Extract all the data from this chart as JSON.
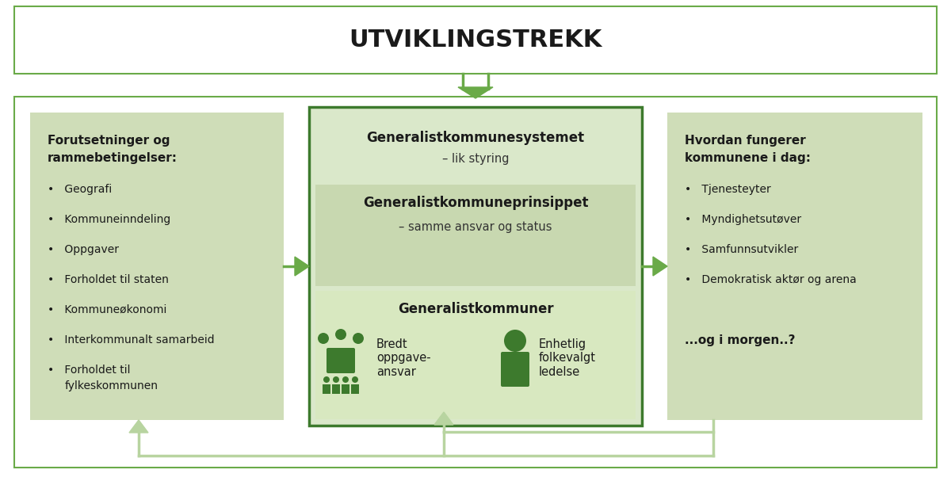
{
  "title": "UTVIKLINGSTREKK",
  "bg_color": "#ffffff",
  "green_light": "#b8d4a0",
  "green_mid": "#6aaa48",
  "green_dark": "#3d7a2d",
  "green_box_fill": "#cfddb8",
  "center_top_fill": "#dae8ca",
  "center_mid_fill": "#c8d8b0",
  "center_bot_fill": "#d8e8c0",
  "left_box": {
    "title_line1": "Forutsetninger og",
    "title_line2": "rammebetingelser:",
    "items": [
      "Geografi",
      "Kommuneinndeling",
      "Oppgaver",
      "Forholdet til staten",
      "Kommuneøkonomi",
      "Interkommunalt samarbeid",
      "Forholdet til\nfylkeskommunen"
    ]
  },
  "center_box": {
    "title1": "Generalistkommunesystemet",
    "subtitle1": "– lik styring",
    "title2": "Generalistkommuneprinsippet",
    "subtitle2": "– samme ansvar og status",
    "title3": "Generalistkommuner",
    "item1": "Bredt\noppgave-\nansvar",
    "item2": "Enhetlig\nfolkevalgt\nledelse"
  },
  "right_box": {
    "title_line1": "Hvordan fungerer",
    "title_line2": "kommunene i dag:",
    "items": [
      "Tjenesteyter",
      "Myndighetsutøver",
      "Samfunnsutvikler",
      "Demokratisk aktør og arena"
    ],
    "footer": "...og i morgen..?"
  }
}
